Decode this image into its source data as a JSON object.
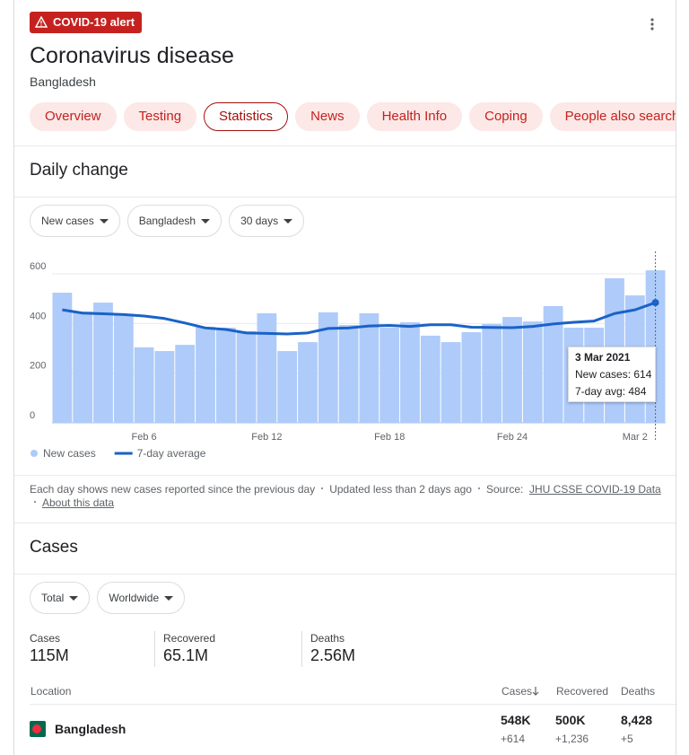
{
  "header": {
    "alert": "COVID-19 alert",
    "title": "Coronavirus disease",
    "subtitle": "Bangladesh"
  },
  "tabs": [
    "Overview",
    "Testing",
    "Statistics",
    "News",
    "Health Info",
    "Coping",
    "People also search for"
  ],
  "daily": {
    "title": "Daily change",
    "filters": [
      "New cases",
      "Bangladesh",
      "30 days"
    ],
    "chart_data": {
      "type": "bar",
      "categories": [
        null,
        null,
        null,
        null,
        "Feb 6",
        null,
        null,
        null,
        null,
        null,
        "Feb 12",
        null,
        null,
        null,
        null,
        null,
        "Feb 18",
        null,
        null,
        null,
        null,
        null,
        "Feb 24",
        null,
        null,
        null,
        null,
        null,
        "Mar 2",
        null
      ],
      "series": [
        {
          "name": "New cases",
          "type": "bar",
          "color": "#aecbfa",
          "values": [
            524,
            448,
            484,
            437,
            304,
            289,
            314,
            387,
            383,
            369,
            441,
            289,
            325,
            445,
            394,
            441,
            383,
            405,
            351,
            325,
            365,
            398,
            426,
            408,
            470,
            383,
            383,
            582,
            513,
            614
          ]
        },
        {
          "name": "7-day average",
          "type": "line",
          "color": "#1a62c6",
          "values": [
            455,
            442,
            439,
            436,
            430,
            420,
            402,
            382,
            376,
            362,
            360,
            358,
            362,
            380,
            382,
            390,
            392,
            388,
            395,
            395,
            385,
            384,
            383,
            388,
            398,
            405,
            410,
            440,
            455,
            484
          ]
        }
      ],
      "ylim": [
        0,
        600
      ],
      "yticks": [
        0,
        200,
        400,
        600
      ],
      "grid": true,
      "legend": "bottom-left"
    },
    "tooltip": {
      "date": "3 Mar 2021",
      "lines": [
        "New cases: 614",
        "7-day avg: 484"
      ]
    },
    "note": "Each day shows new cases reported since the previous day",
    "updated": "Updated less than 2 days ago",
    "source_label": "Source:",
    "source": "JHU CSSE COVID-19 Data",
    "about": "About this data"
  },
  "cases": {
    "title": "Cases",
    "filters": [
      "Total",
      "Worldwide"
    ],
    "stats": [
      {
        "label": "Cases",
        "value": "115M"
      },
      {
        "label": "Recovered",
        "value": "65.1M"
      },
      {
        "label": "Deaths",
        "value": "2.56M"
      }
    ],
    "table": {
      "header": [
        "Location",
        "Cases",
        "Recovered",
        "Deaths"
      ],
      "rows": [
        {
          "location": "Bangladesh",
          "cases": "548K",
          "cases_delta": "+614",
          "recovered": "500K",
          "recovered_delta": "+1,236",
          "deaths": "8,428",
          "deaths_delta": "+5"
        }
      ]
    }
  }
}
